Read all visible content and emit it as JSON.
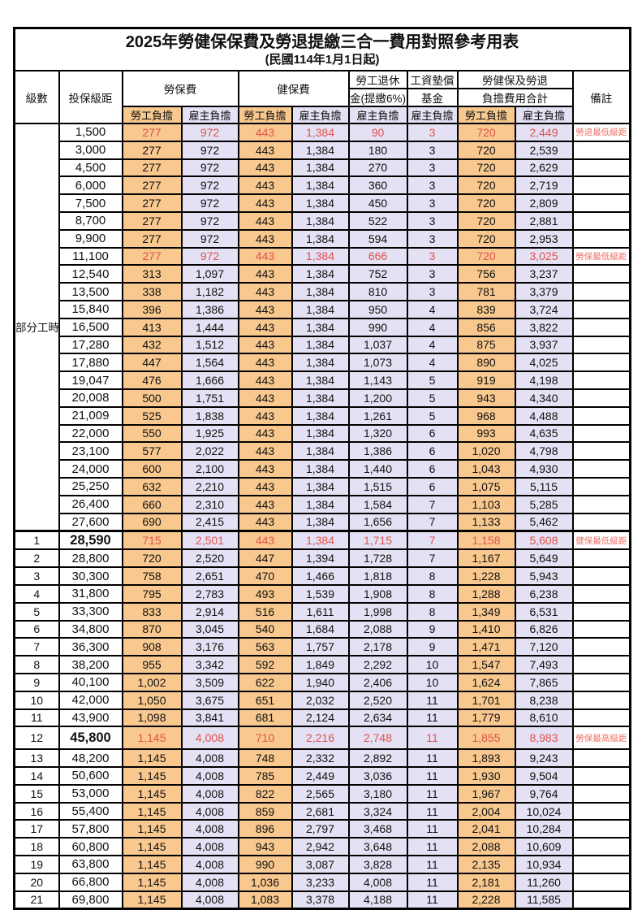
{
  "title": "2025年勞健保保費及勞退提繳三合一費用對照參考用表",
  "subtitle": "(民國114年1月1日起)",
  "header": {
    "level": "級數",
    "bracket": "投保級距",
    "labor_insurance": "勞保費",
    "health_insurance": "健保費",
    "pension_line1": "勞工退休",
    "pension_line2": "金(提繳6%)",
    "fund_line1": "工資墊償",
    "fund_line2": "基金",
    "total_line1": "勞健保及勞退",
    "total_line2": "負擔費用合計",
    "remark": "備註",
    "employee": "勞工負擔",
    "employer": "雇主負擔"
  },
  "part_time": {
    "label": "部分工時",
    "span": 23
  },
  "colors": {
    "employee_cell_bg": "#F8C88E",
    "employer_cell_bg": "#E3E1F3",
    "highlight_text": "#E0524E",
    "remark_text": "#ED7167",
    "border": "#000000"
  },
  "rows": [
    {
      "level": "",
      "bracket": "1,500",
      "cells": [
        "277",
        "972",
        "443",
        "1,384",
        "90",
        "3",
        "720",
        "2,449"
      ],
      "remark": "勞退最低級距",
      "hl": true
    },
    {
      "level": "",
      "bracket": "3,000",
      "cells": [
        "277",
        "972",
        "443",
        "1,384",
        "180",
        "3",
        "720",
        "2,539"
      ],
      "remark": ""
    },
    {
      "level": "",
      "bracket": "4,500",
      "cells": [
        "277",
        "972",
        "443",
        "1,384",
        "270",
        "3",
        "720",
        "2,629"
      ],
      "remark": ""
    },
    {
      "level": "",
      "bracket": "6,000",
      "cells": [
        "277",
        "972",
        "443",
        "1,384",
        "360",
        "3",
        "720",
        "2,719"
      ],
      "remark": ""
    },
    {
      "level": "",
      "bracket": "7,500",
      "cells": [
        "277",
        "972",
        "443",
        "1,384",
        "450",
        "3",
        "720",
        "2,809"
      ],
      "remark": ""
    },
    {
      "level": "",
      "bracket": "8,700",
      "cells": [
        "277",
        "972",
        "443",
        "1,384",
        "522",
        "3",
        "720",
        "2,881"
      ],
      "remark": ""
    },
    {
      "level": "",
      "bracket": "9,900",
      "cells": [
        "277",
        "972",
        "443",
        "1,384",
        "594",
        "3",
        "720",
        "2,953"
      ],
      "remark": ""
    },
    {
      "level": "",
      "bracket": "11,100",
      "cells": [
        "277",
        "972",
        "443",
        "1,384",
        "666",
        "3",
        "720",
        "3,025"
      ],
      "remark": "勞保最低級距",
      "hl": true
    },
    {
      "level": "",
      "bracket": "12,540",
      "cells": [
        "313",
        "1,097",
        "443",
        "1,384",
        "752",
        "3",
        "756",
        "3,237"
      ],
      "remark": ""
    },
    {
      "level": "",
      "bracket": "13,500",
      "cells": [
        "338",
        "1,182",
        "443",
        "1,384",
        "810",
        "3",
        "781",
        "3,379"
      ],
      "remark": ""
    },
    {
      "level": "",
      "bracket": "15,840",
      "cells": [
        "396",
        "1,386",
        "443",
        "1,384",
        "950",
        "4",
        "839",
        "3,724"
      ],
      "remark": ""
    },
    {
      "level": "",
      "bracket": "16,500",
      "cells": [
        "413",
        "1,444",
        "443",
        "1,384",
        "990",
        "4",
        "856",
        "3,822"
      ],
      "remark": ""
    },
    {
      "level": "",
      "bracket": "17,280",
      "cells": [
        "432",
        "1,512",
        "443",
        "1,384",
        "1,037",
        "4",
        "875",
        "3,937"
      ],
      "remark": ""
    },
    {
      "level": "",
      "bracket": "17,880",
      "cells": [
        "447",
        "1,564",
        "443",
        "1,384",
        "1,073",
        "4",
        "890",
        "4,025"
      ],
      "remark": ""
    },
    {
      "level": "",
      "bracket": "19,047",
      "cells": [
        "476",
        "1,666",
        "443",
        "1,384",
        "1,143",
        "5",
        "919",
        "4,198"
      ],
      "remark": ""
    },
    {
      "level": "",
      "bracket": "20,008",
      "cells": [
        "500",
        "1,751",
        "443",
        "1,384",
        "1,200",
        "5",
        "943",
        "4,340"
      ],
      "remark": ""
    },
    {
      "level": "",
      "bracket": "21,009",
      "cells": [
        "525",
        "1,838",
        "443",
        "1,384",
        "1,261",
        "5",
        "968",
        "4,488"
      ],
      "remark": ""
    },
    {
      "level": "",
      "bracket": "22,000",
      "cells": [
        "550",
        "1,925",
        "443",
        "1,384",
        "1,320",
        "6",
        "993",
        "4,635"
      ],
      "remark": ""
    },
    {
      "level": "",
      "bracket": "23,100",
      "cells": [
        "577",
        "2,022",
        "443",
        "1,384",
        "1,386",
        "6",
        "1,020",
        "4,798"
      ],
      "remark": ""
    },
    {
      "level": "",
      "bracket": "24,000",
      "cells": [
        "600",
        "2,100",
        "443",
        "1,384",
        "1,440",
        "6",
        "1,043",
        "4,930"
      ],
      "remark": ""
    },
    {
      "level": "",
      "bracket": "25,250",
      "cells": [
        "632",
        "2,210",
        "443",
        "1,384",
        "1,515",
        "6",
        "1,075",
        "5,115"
      ],
      "remark": ""
    },
    {
      "level": "",
      "bracket": "26,400",
      "cells": [
        "660",
        "2,310",
        "443",
        "1,384",
        "1,584",
        "7",
        "1,103",
        "5,285"
      ],
      "remark": ""
    },
    {
      "level": "",
      "bracket": "27,600",
      "cells": [
        "690",
        "2,415",
        "443",
        "1,384",
        "1,656",
        "7",
        "1,133",
        "5,462"
      ],
      "remark": ""
    },
    {
      "level": "1",
      "bracket": "28,590",
      "cells": [
        "715",
        "2,501",
        "443",
        "1,384",
        "1,715",
        "7",
        "1,158",
        "5,608"
      ],
      "remark": "健保最低級距",
      "hl": true,
      "em": true
    },
    {
      "level": "2",
      "bracket": "28,800",
      "cells": [
        "720",
        "2,520",
        "447",
        "1,394",
        "1,728",
        "7",
        "1,167",
        "5,649"
      ],
      "remark": ""
    },
    {
      "level": "3",
      "bracket": "30,300",
      "cells": [
        "758",
        "2,651",
        "470",
        "1,466",
        "1,818",
        "8",
        "1,228",
        "5,943"
      ],
      "remark": ""
    },
    {
      "level": "4",
      "bracket": "31,800",
      "cells": [
        "795",
        "2,783",
        "493",
        "1,539",
        "1,908",
        "8",
        "1,288",
        "6,238"
      ],
      "remark": ""
    },
    {
      "level": "5",
      "bracket": "33,300",
      "cells": [
        "833",
        "2,914",
        "516",
        "1,611",
        "1,998",
        "8",
        "1,349",
        "6,531"
      ],
      "remark": ""
    },
    {
      "level": "6",
      "bracket": "34,800",
      "cells": [
        "870",
        "3,045",
        "540",
        "1,684",
        "2,088",
        "9",
        "1,410",
        "6,826"
      ],
      "remark": ""
    },
    {
      "level": "7",
      "bracket": "36,300",
      "cells": [
        "908",
        "3,176",
        "563",
        "1,757",
        "2,178",
        "9",
        "1,471",
        "7,120"
      ],
      "remark": ""
    },
    {
      "level": "8",
      "bracket": "38,200",
      "cells": [
        "955",
        "3,342",
        "592",
        "1,849",
        "2,292",
        "10",
        "1,547",
        "7,493"
      ],
      "remark": ""
    },
    {
      "level": "9",
      "bracket": "40,100",
      "cells": [
        "1,002",
        "3,509",
        "622",
        "1,940",
        "2,406",
        "10",
        "1,624",
        "7,865"
      ],
      "remark": ""
    },
    {
      "level": "10",
      "bracket": "42,000",
      "cells": [
        "1,050",
        "3,675",
        "651",
        "2,032",
        "2,520",
        "11",
        "1,701",
        "8,238"
      ],
      "remark": ""
    },
    {
      "level": "11",
      "bracket": "43,900",
      "cells": [
        "1,098",
        "3,841",
        "681",
        "2,124",
        "2,634",
        "11",
        "1,779",
        "8,610"
      ],
      "remark": ""
    },
    {
      "level": "12",
      "bracket": "45,800",
      "cells": [
        "1,145",
        "4,008",
        "710",
        "2,216",
        "2,748",
        "11",
        "1,855",
        "8,983"
      ],
      "remark": "勞保最高級距",
      "hl": true,
      "em": true,
      "tall": true
    },
    {
      "level": "13",
      "bracket": "48,200",
      "cells": [
        "1,145",
        "4,008",
        "748",
        "2,332",
        "2,892",
        "11",
        "1,893",
        "9,243"
      ],
      "remark": ""
    },
    {
      "level": "14",
      "bracket": "50,600",
      "cells": [
        "1,145",
        "4,008",
        "785",
        "2,449",
        "3,036",
        "11",
        "1,930",
        "9,504"
      ],
      "remark": ""
    },
    {
      "level": "15",
      "bracket": "53,000",
      "cells": [
        "1,145",
        "4,008",
        "822",
        "2,565",
        "3,180",
        "11",
        "1,967",
        "9,764"
      ],
      "remark": ""
    },
    {
      "level": "16",
      "bracket": "55,400",
      "cells": [
        "1,145",
        "4,008",
        "859",
        "2,681",
        "3,324",
        "11",
        "2,004",
        "10,024"
      ],
      "remark": ""
    },
    {
      "level": "17",
      "bracket": "57,800",
      "cells": [
        "1,145",
        "4,008",
        "896",
        "2,797",
        "3,468",
        "11",
        "2,041",
        "10,284"
      ],
      "remark": ""
    },
    {
      "level": "18",
      "bracket": "60,800",
      "cells": [
        "1,145",
        "4,008",
        "943",
        "2,942",
        "3,648",
        "11",
        "2,088",
        "10,609"
      ],
      "remark": ""
    },
    {
      "level": "19",
      "bracket": "63,800",
      "cells": [
        "1,145",
        "4,008",
        "990",
        "3,087",
        "3,828",
        "11",
        "2,135",
        "10,934"
      ],
      "remark": ""
    },
    {
      "level": "20",
      "bracket": "66,800",
      "cells": [
        "1,145",
        "4,008",
        "1,036",
        "3,233",
        "4,008",
        "11",
        "2,181",
        "11,260"
      ],
      "remark": ""
    },
    {
      "level": "21",
      "bracket": "69,800",
      "cells": [
        "1,145",
        "4,008",
        "1,083",
        "3,378",
        "4,188",
        "11",
        "2,228",
        "11,585"
      ],
      "remark": ""
    }
  ]
}
